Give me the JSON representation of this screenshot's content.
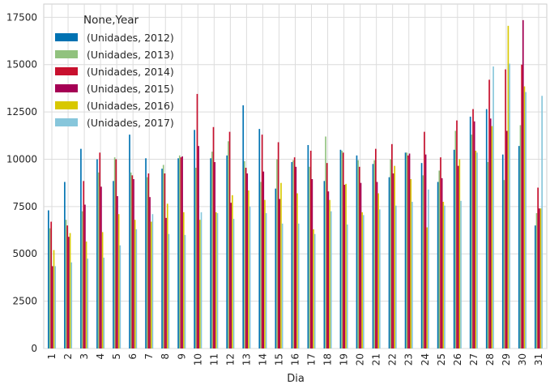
{
  "chart_data": {
    "type": "bar",
    "title": "",
    "xlabel": "Dia",
    "ylabel": "",
    "ylim": [
      0,
      18200
    ],
    "yticks": [
      0,
      2500,
      5000,
      7500,
      10000,
      12500,
      15000,
      17500
    ],
    "ytick_labels": [
      "0",
      "2500",
      "5000",
      "7500",
      "10000",
      "12500",
      "15000",
      "17500"
    ],
    "grid": true,
    "legend_title": "None,Year",
    "legend_position": "top-left",
    "categories": [
      "1",
      "2",
      "3",
      "4",
      "5",
      "6",
      "7",
      "8",
      "9",
      "10",
      "11",
      "12",
      "13",
      "14",
      "15",
      "16",
      "17",
      "18",
      "19",
      "20",
      "21",
      "22",
      "23",
      "24",
      "25",
      "26",
      "27",
      "28",
      "29",
      "30",
      "31"
    ],
    "series": [
      {
        "name": "(Unidades, 2012)",
        "color": "#0072b2",
        "values": [
          7300,
          8800,
          10550,
          10000,
          8850,
          11300,
          10050,
          9500,
          10050,
          11550,
          10050,
          10200,
          12850,
          11600,
          8450,
          9850,
          10750,
          8850,
          10500,
          10200,
          9750,
          9050,
          10350,
          9800,
          8800,
          10500,
          12250,
          12650,
          10250,
          10700,
          6500
        ]
      },
      {
        "name": "(Unidades, 2013)",
        "color": "#91c27e",
        "values": [
          6350,
          6800,
          7250,
          9300,
          10100,
          9300,
          9050,
          9700,
          10200,
          9550,
          10400,
          10950,
          9900,
          8800,
          10000,
          9950,
          9600,
          11200,
          10450,
          9950,
          9950,
          10000,
          10350,
          9150,
          9400,
          11500,
          11300,
          9850,
          8900,
          11800,
          7150
        ]
      },
      {
        "name": "(Unidades, 2014)",
        "color": "#c8102e",
        "values": [
          6700,
          6500,
          8850,
          10350,
          10000,
          9150,
          9250,
          9250,
          10100,
          13450,
          11700,
          11450,
          9550,
          11300,
          10900,
          10100,
          10450,
          9800,
          10350,
          9600,
          10550,
          10800,
          10200,
          11450,
          10100,
          12050,
          12650,
          14200,
          14750,
          15000,
          8500
        ]
      },
      {
        "name": "(Unidades, 2015)",
        "color": "#a50054",
        "values": [
          4350,
          5900,
          7600,
          8550,
          8050,
          8950,
          8000,
          6900,
          10150,
          10700,
          9850,
          7700,
          9250,
          9350,
          7900,
          9600,
          8950,
          8300,
          8650,
          8750,
          8800,
          9250,
          10300,
          10250,
          9000,
          9650,
          12000,
          12150,
          11500,
          17350,
          7400
        ]
      },
      {
        "name": "(Unidades, 2016)",
        "color": "#d8c800",
        "values": [
          5200,
          6100,
          5650,
          6150,
          7100,
          6800,
          6700,
          7650,
          7200,
          6800,
          7200,
          8100,
          8350,
          7850,
          8750,
          8200,
          6300,
          7850,
          8700,
          7200,
          8200,
          9650,
          8950,
          6400,
          7750,
          10000,
          10450,
          11750,
          17050,
          13850,
          7400
        ]
      },
      {
        "name": "(Unidades, 2017)",
        "color": "#87c6db",
        "values": [
          4350,
          4550,
          4750,
          4800,
          5450,
          6300,
          7100,
          6050,
          6000,
          7200,
          7150,
          6850,
          7500,
          7150,
          6600,
          6600,
          6050,
          7250,
          6550,
          7050,
          7350,
          7550,
          7750,
          8400,
          7550,
          7800,
          10350,
          14900,
          15050,
          13550,
          13350
        ]
      }
    ]
  }
}
